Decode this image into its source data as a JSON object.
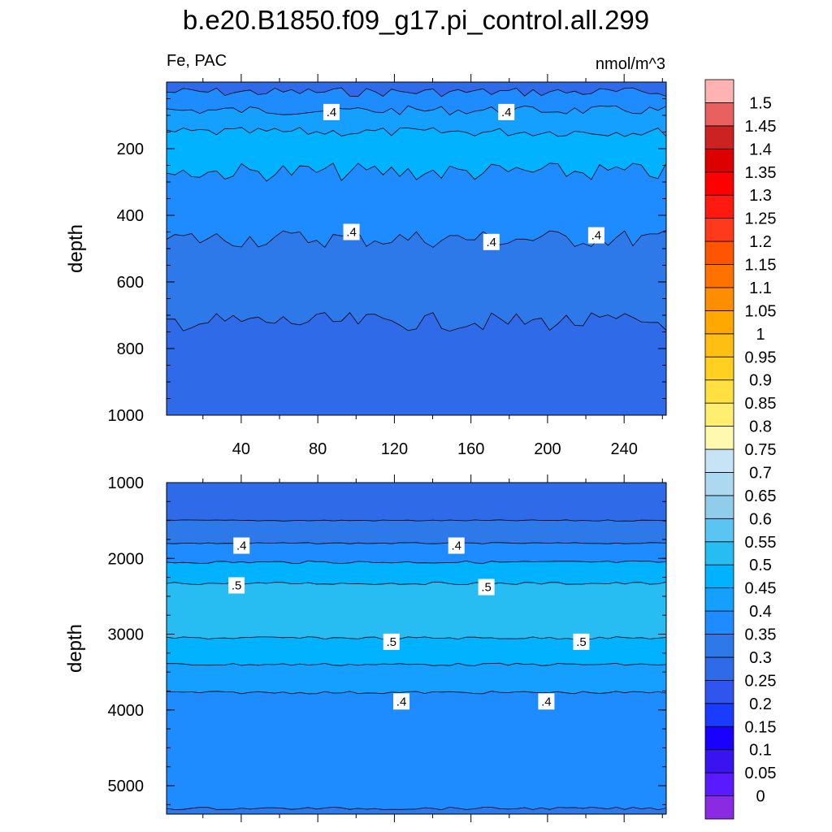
{
  "chart_data": {
    "type": "contour",
    "title": "b.e20.B1850.f09_g17.pi_control.all.299",
    "left_string": "Fe, PAC",
    "right_string": "nmol/m^3",
    "colorbar": {
      "levels": [
        "0",
        "0.05",
        "0.1",
        "0.15",
        "0.2",
        "0.25",
        "0.3",
        "0.35",
        "0.4",
        "0.45",
        "0.5",
        "0.55",
        "0.6",
        "0.65",
        "0.7",
        "0.75",
        "0.8",
        "0.85",
        "0.9",
        "0.95",
        "1",
        "1.05",
        "1.1",
        "1.15",
        "1.2",
        "1.25",
        "1.3",
        "1.35",
        "1.4",
        "1.45",
        "1.5"
      ],
      "colors": [
        "#8a2be2",
        "#5a1aff",
        "#3a14f0",
        "#1a00ff",
        "#1a3cff",
        "#2f55ee",
        "#2f6ae8",
        "#2e79ea",
        "#1e8cff",
        "#159fff",
        "#00b2ff",
        "#27bcf2",
        "#5ac5f2",
        "#8fcdeb",
        "#acd9f0",
        "#c6e4f5",
        "#fff9b0",
        "#ffef70",
        "#ffe040",
        "#ffd020",
        "#ffbe12",
        "#ffa900",
        "#ff8d00",
        "#ff7200",
        "#ff5500",
        "#ff3a1c",
        "#ff1a10",
        "#ff0000",
        "#dd0000",
        "#cc2222",
        "#e86060",
        "#ffb2b2"
      ]
    },
    "panels": [
      {
        "ylabel": "depth",
        "ylim": [
          1000,
          0
        ],
        "xlim": [
          1,
          262
        ],
        "x_ticks": [
          "40",
          "80",
          "120",
          "160",
          "200",
          "240"
        ],
        "y_ticks": [
          "200",
          "400",
          "600",
          "800",
          "1000"
        ],
        "bands": [
          {
            "from_depth": 0,
            "to_depth": 30,
            "color": "#2f6ae8"
          },
          {
            "from_depth": 30,
            "to_depth": 85,
            "color": "#1e8cff"
          },
          {
            "from_depth": 85,
            "to_depth": 150,
            "color": "#159fff"
          },
          {
            "from_depth": 150,
            "to_depth": 270,
            "color": "#00b2ff"
          },
          {
            "from_depth": 270,
            "to_depth": 470,
            "color": "#1e8cff"
          },
          {
            "from_depth": 470,
            "to_depth": 720,
            "color": "#2e79ea"
          },
          {
            "from_depth": 720,
            "to_depth": 1000,
            "color": "#2f6ae8"
          }
        ],
        "contour_labels": [
          ".4",
          ".4",
          ".4",
          ".4",
          ".4"
        ]
      },
      {
        "ylabel": "depth",
        "ylim": [
          5375,
          1000
        ],
        "xlim": [
          1,
          262
        ],
        "x_ticks": [],
        "y_ticks": [
          "1000",
          "2000",
          "3000",
          "4000",
          "5000"
        ],
        "bands": [
          {
            "from_depth": 1000,
            "to_depth": 1500,
            "color": "#2f6ae8"
          },
          {
            "from_depth": 1500,
            "to_depth": 1800,
            "color": "#2e79ea"
          },
          {
            "from_depth": 1800,
            "to_depth": 2050,
            "color": "#1e8cff"
          },
          {
            "from_depth": 2050,
            "to_depth": 2330,
            "color": "#00b2ff"
          },
          {
            "from_depth": 2330,
            "to_depth": 3050,
            "color": "#27bcf2"
          },
          {
            "from_depth": 3050,
            "to_depth": 3400,
            "color": "#00b2ff"
          },
          {
            "from_depth": 3400,
            "to_depth": 3770,
            "color": "#159fff"
          },
          {
            "from_depth": 3770,
            "to_depth": 5300,
            "color": "#1e8cff"
          },
          {
            "from_depth": 5300,
            "to_depth": 5375,
            "color": "#2e79ea"
          }
        ],
        "contour_labels": [
          ".4",
          ".4",
          ".5",
          ".5",
          ".5",
          ".5",
          ".4",
          ".4"
        ]
      }
    ]
  }
}
